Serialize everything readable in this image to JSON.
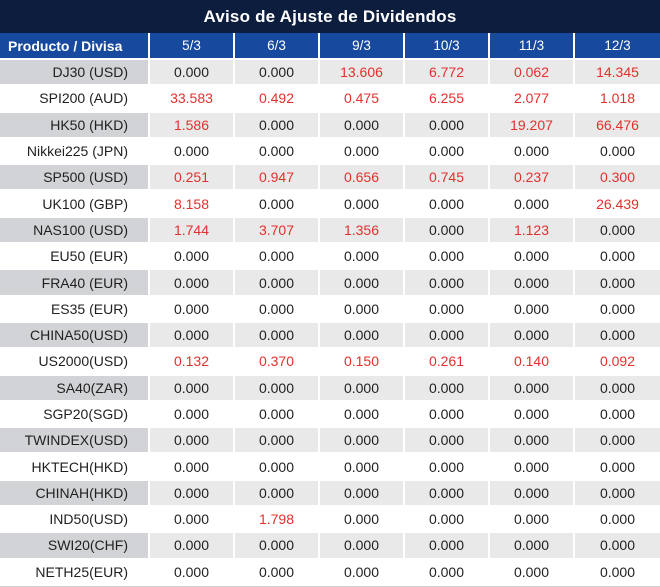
{
  "title": "Aviso de Ajuste de Dividendos",
  "columns": [
    "Producto / Divisa",
    "5/3",
    "6/3",
    "9/3",
    "10/3",
    "11/3",
    "12/3"
  ],
  "colors": {
    "title_bg": "#0d1d3d",
    "header_bg": "#17499e",
    "alt_name_bg": "#d2d3d6",
    "alt_value_bg": "#e9e9ea",
    "text": "#1f1f1f",
    "red": "#e3302c",
    "bottom_border": "#d0d0d0"
  },
  "rows": [
    {
      "name": "DJ30 (USD)",
      "values": [
        "0.000",
        "0.000",
        "13.606",
        "6.772",
        "0.062",
        "14.345"
      ]
    },
    {
      "name": "SPI200 (AUD)",
      "values": [
        "33.583",
        "0.492",
        "0.475",
        "6.255",
        "2.077",
        "1.018"
      ]
    },
    {
      "name": "HK50 (HKD)",
      "values": [
        "1.586",
        "0.000",
        "0.000",
        "0.000",
        "19.207",
        "66.476"
      ]
    },
    {
      "name": "Nikkei225 (JPN)",
      "values": [
        "0.000",
        "0.000",
        "0.000",
        "0.000",
        "0.000",
        "0.000"
      ]
    },
    {
      "name": "SP500 (USD)",
      "values": [
        "0.251",
        "0.947",
        "0.656",
        "0.745",
        "0.237",
        "0.300"
      ]
    },
    {
      "name": "UK100 (GBP)",
      "values": [
        "8.158",
        "0.000",
        "0.000",
        "0.000",
        "0.000",
        "26.439"
      ]
    },
    {
      "name": "NAS100 (USD)",
      "values": [
        "1.744",
        "3.707",
        "1.356",
        "0.000",
        "1.123",
        "0.000"
      ]
    },
    {
      "name": "EU50 (EUR)",
      "values": [
        "0.000",
        "0.000",
        "0.000",
        "0.000",
        "0.000",
        "0.000"
      ]
    },
    {
      "name": "FRA40 (EUR)",
      "values": [
        "0.000",
        "0.000",
        "0.000",
        "0.000",
        "0.000",
        "0.000"
      ]
    },
    {
      "name": "ES35 (EUR)",
      "values": [
        "0.000",
        "0.000",
        "0.000",
        "0.000",
        "0.000",
        "0.000"
      ]
    },
    {
      "name": "CHINA50(USD)",
      "values": [
        "0.000",
        "0.000",
        "0.000",
        "0.000",
        "0.000",
        "0.000"
      ]
    },
    {
      "name": "US2000(USD)",
      "values": [
        "0.132",
        "0.370",
        "0.150",
        "0.261",
        "0.140",
        "0.092"
      ]
    },
    {
      "name": "SA40(ZAR)",
      "values": [
        "0.000",
        "0.000",
        "0.000",
        "0.000",
        "0.000",
        "0.000"
      ]
    },
    {
      "name": "SGP20(SGD)",
      "values": [
        "0.000",
        "0.000",
        "0.000",
        "0.000",
        "0.000",
        "0.000"
      ]
    },
    {
      "name": "TWINDEX(USD)",
      "values": [
        "0.000",
        "0.000",
        "0.000",
        "0.000",
        "0.000",
        "0.000"
      ]
    },
    {
      "name": "HKTECH(HKD)",
      "values": [
        "0.000",
        "0.000",
        "0.000",
        "0.000",
        "0.000",
        "0.000"
      ]
    },
    {
      "name": "CHINAH(HKD)",
      "values": [
        "0.000",
        "0.000",
        "0.000",
        "0.000",
        "0.000",
        "0.000"
      ]
    },
    {
      "name": "IND50(USD)",
      "values": [
        "0.000",
        "1.798",
        "0.000",
        "0.000",
        "0.000",
        "0.000"
      ]
    },
    {
      "name": "SWI20(CHF)",
      "values": [
        "0.000",
        "0.000",
        "0.000",
        "0.000",
        "0.000",
        "0.000"
      ]
    },
    {
      "name": "NETH25(EUR)",
      "values": [
        "0.000",
        "0.000",
        "0.000",
        "0.000",
        "0.000",
        "0.000"
      ]
    }
  ]
}
